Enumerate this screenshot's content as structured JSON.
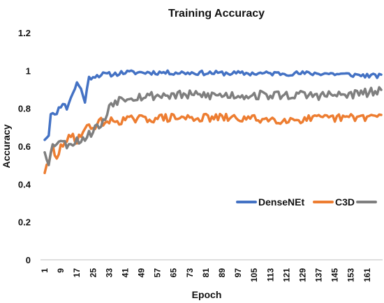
{
  "chart_data": {
    "type": "line",
    "title": "Training Accuracy",
    "xlabel": "Epoch",
    "ylabel": "Accuracy",
    "ylim": [
      0,
      1.2
    ],
    "yticks": [
      "0",
      "0.2",
      "0.4",
      "0.6",
      "0.8",
      "1",
      "1.2"
    ],
    "xticks": [
      "1",
      "9",
      "17",
      "25",
      "33",
      "41",
      "49",
      "57",
      "65",
      "73",
      "81",
      "89",
      "97",
      "105",
      "113",
      "121",
      "129",
      "137",
      "145",
      "153",
      "161"
    ],
    "xlim": [
      1,
      168
    ],
    "grid": false,
    "legend_position": "right",
    "series": [
      {
        "name": "DenseNEt",
        "color": "#4472C4",
        "anchors": [
          [
            1,
            0.64
          ],
          [
            3,
            0.66
          ],
          [
            4,
            0.78
          ],
          [
            6,
            0.76
          ],
          [
            8,
            0.8
          ],
          [
            10,
            0.83
          ],
          [
            12,
            0.8
          ],
          [
            14,
            0.86
          ],
          [
            16,
            0.9
          ],
          [
            17,
            0.94
          ],
          [
            19,
            0.9
          ],
          [
            21,
            0.84
          ],
          [
            23,
            0.96
          ],
          [
            25,
            0.97
          ],
          [
            30,
            0.98
          ],
          [
            35,
            0.98
          ],
          [
            40,
            0.99
          ],
          [
            60,
            0.99
          ],
          [
            100,
            0.985
          ],
          [
            140,
            0.985
          ],
          [
            168,
            0.97
          ]
        ],
        "noise": 0.012,
        "seed": 11
      },
      {
        "name": "C3D",
        "color": "#ED7D31",
        "anchors": [
          [
            1,
            0.47
          ],
          [
            3,
            0.5
          ],
          [
            5,
            0.6
          ],
          [
            7,
            0.52
          ],
          [
            9,
            0.62
          ],
          [
            11,
            0.6
          ],
          [
            13,
            0.64
          ],
          [
            15,
            0.66
          ],
          [
            17,
            0.63
          ],
          [
            19,
            0.67
          ],
          [
            21,
            0.69
          ],
          [
            23,
            0.7
          ],
          [
            25,
            0.7
          ],
          [
            27,
            0.72
          ],
          [
            29,
            0.73
          ],
          [
            33,
            0.73
          ],
          [
            41,
            0.74
          ],
          [
            60,
            0.75
          ],
          [
            90,
            0.75
          ],
          [
            120,
            0.74
          ],
          [
            150,
            0.75
          ],
          [
            168,
            0.76
          ]
        ],
        "noise": 0.022,
        "seed": 29
      },
      {
        "name": "",
        "color": "#7F7F7F",
        "anchors": [
          [
            1,
            0.58
          ],
          [
            3,
            0.52
          ],
          [
            5,
            0.6
          ],
          [
            8,
            0.64
          ],
          [
            11,
            0.61
          ],
          [
            14,
            0.62
          ],
          [
            17,
            0.63
          ],
          [
            20,
            0.64
          ],
          [
            23,
            0.66
          ],
          [
            26,
            0.7
          ],
          [
            29,
            0.71
          ],
          [
            31,
            0.74
          ],
          [
            33,
            0.82
          ],
          [
            36,
            0.84
          ],
          [
            41,
            0.86
          ],
          [
            60,
            0.87
          ],
          [
            90,
            0.87
          ],
          [
            120,
            0.87
          ],
          [
            150,
            0.87
          ],
          [
            168,
            0.89
          ]
        ],
        "noise": 0.025,
        "seed": 53
      }
    ]
  }
}
